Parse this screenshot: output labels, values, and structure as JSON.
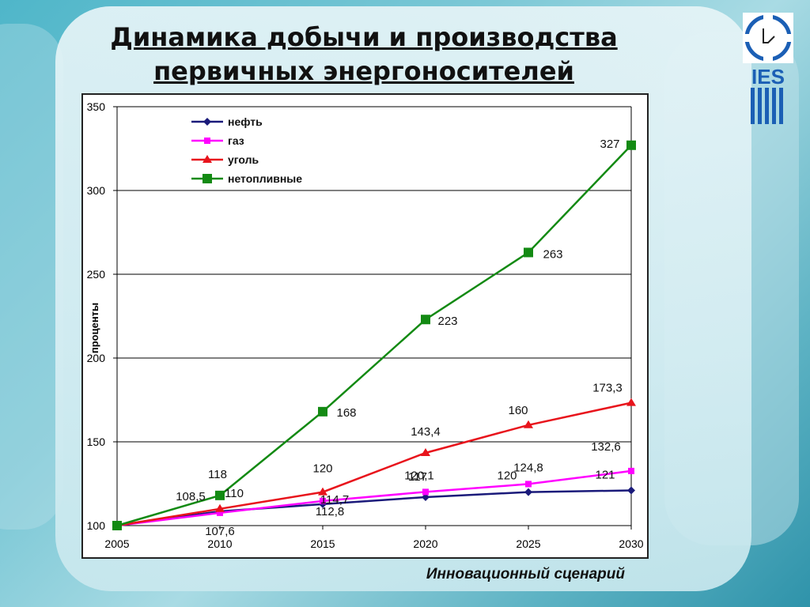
{
  "slide": {
    "title": "Динамика добычи и производства первичных энергоносителей",
    "caption": "Инновационный сценарий",
    "logo_text": "IES"
  },
  "chart_data": {
    "type": "line",
    "title": "",
    "xlabel": "",
    "ylabel": "проценты",
    "categories": [
      "2005",
      "2010",
      "2015",
      "2020",
      "2025",
      "2030"
    ],
    "ylim": [
      100,
      350
    ],
    "yticks": [
      100,
      150,
      200,
      250,
      300,
      350
    ],
    "grid": true,
    "legend_position": "top-left",
    "series": [
      {
        "name": "нефть",
        "color": "#1a1a7a",
        "marker": "diamond",
        "values": [
          100,
          108.5,
          112.8,
          117,
          120,
          121
        ],
        "labels": [
          "",
          "108,5",
          "112,8",
          "117",
          "120",
          "121"
        ]
      },
      {
        "name": "газ",
        "color": "#ff00ff",
        "marker": "square",
        "values": [
          100,
          107.6,
          114.7,
          120.1,
          124.8,
          132.6
        ],
        "labels": [
          "",
          "107,6",
          "114,7",
          "120,1",
          "124,8",
          "132,6"
        ]
      },
      {
        "name": "уголь",
        "color": "#e8141c",
        "marker": "triangle",
        "values": [
          100,
          110,
          120,
          143.4,
          160,
          173.3
        ],
        "labels": [
          "",
          "110",
          "120",
          "143,4",
          "160",
          "173,3"
        ]
      },
      {
        "name": "нетопливные",
        "color": "#138a13",
        "marker": "bigsquare",
        "values": [
          100,
          118,
          168,
          223,
          263,
          327
        ],
        "labels": [
          "",
          "118",
          "168",
          "223",
          "263",
          "327"
        ]
      }
    ]
  }
}
